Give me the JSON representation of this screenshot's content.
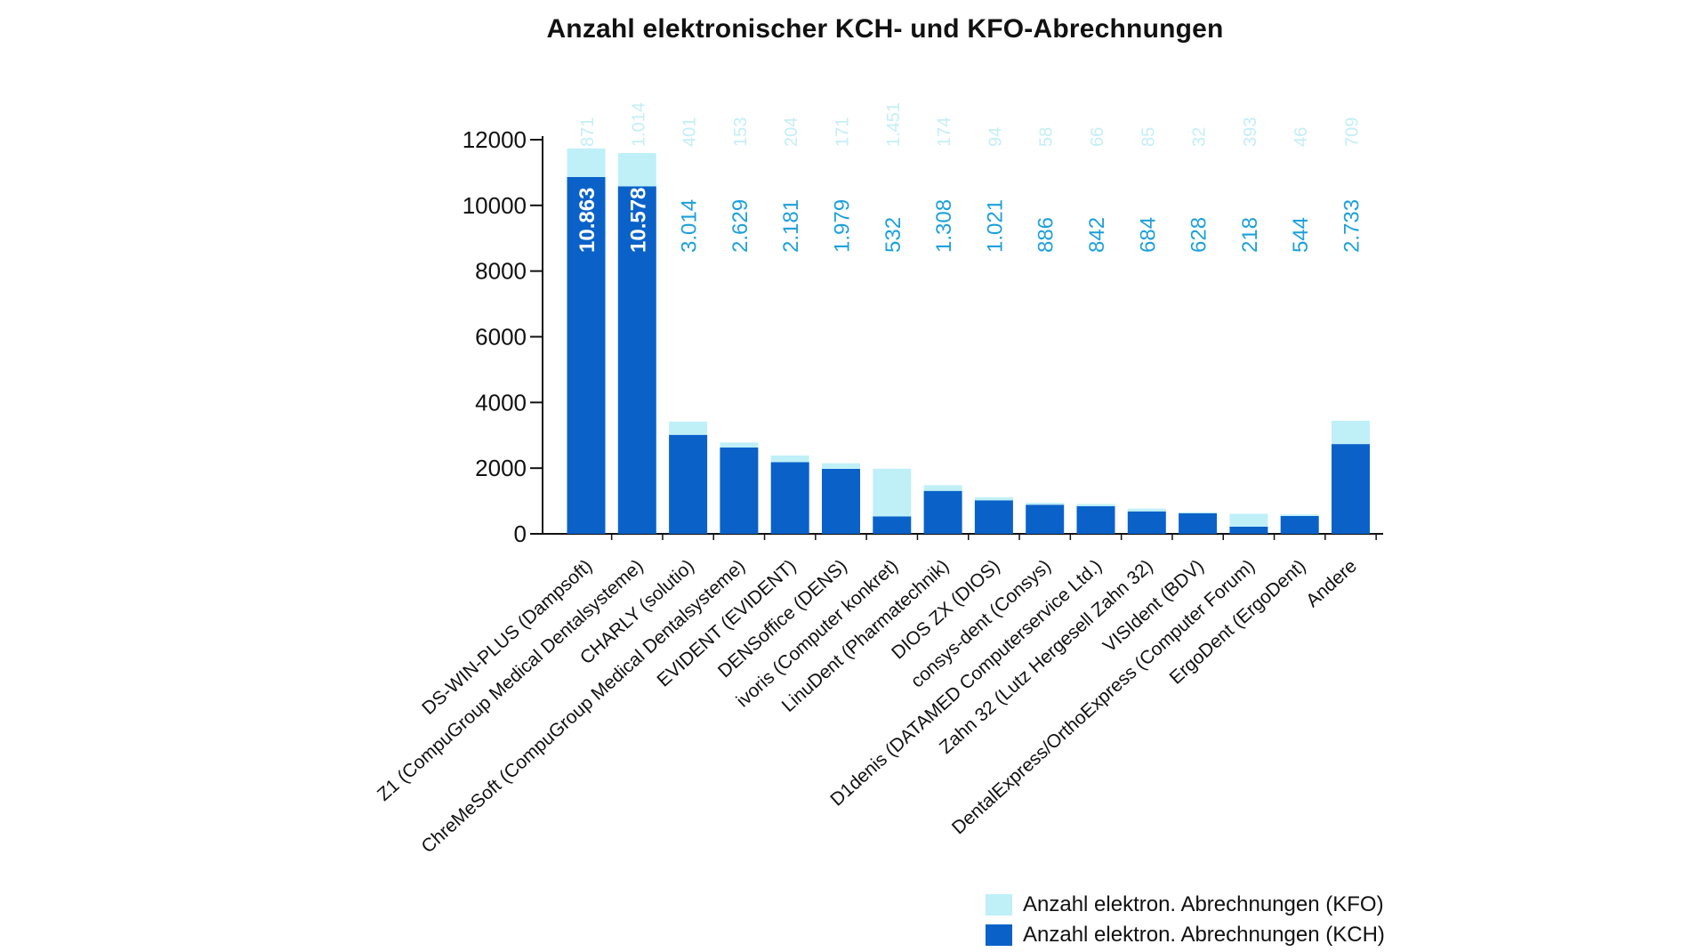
{
  "colors": {
    "kch": "#0a62c9",
    "kfo": "#bff0f8",
    "kch_label_inside": "#ffffff",
    "kch_label_outside": "#1da0dc",
    "kfo_label": "#c4eef6",
    "axis": "#111111"
  },
  "chart_data": {
    "type": "bar",
    "stacked": true,
    "title": "Anzahl elektronischer KCH- und KFO-Abrechnungen",
    "xlabel": "",
    "ylabel": "",
    "ylim": [
      0,
      12000
    ],
    "yticks": [
      "0",
      "2000",
      "4000",
      "6000",
      "8000",
      "10000",
      "12000"
    ],
    "grid": false,
    "legend_position": "bottom-right",
    "categories": [
      "DS-WIN-PLUS (Dampsoft)",
      "Z1 (CompuGroup Medical Dentalsysteme)",
      "CHARLY (solutio)",
      "ChreMeSoft (CompuGroup Medical Dentalsysteme)",
      "EVIDENT (EVIDENT)",
      "DENSoffice (DENS)",
      "ivoris (Computer konkret)",
      "LinuDent (Pharmatechnik)",
      "DIOS ZX (DIOS)",
      "consys-dent (Consys)",
      "D1denis (DATAMED Computerservice Ltd.)",
      "Zahn 32 (Lutz Hergesell Zahn 32)",
      "VISIdent (BDV)",
      "DentalExpress/OrthoExpress (Computer Forum)",
      "ErgoDent (ErgoDent)",
      "Andere"
    ],
    "series": [
      {
        "name": "Anzahl elektron. Abrechnungen (KCH)",
        "values": [
          10863,
          10578,
          3014,
          2629,
          2181,
          1979,
          532,
          1308,
          1021,
          886,
          842,
          684,
          628,
          218,
          544,
          2733
        ],
        "labels": [
          "10.863",
          "10.578",
          "3.014",
          "2.629",
          "2.181",
          "1.979",
          "532",
          "1.308",
          "1.021",
          "886",
          "842",
          "684",
          "628",
          "218",
          "544",
          "2.733"
        ]
      },
      {
        "name": "Anzahl elektron. Abrechnungen (KFO)",
        "values": [
          871,
          1014,
          401,
          153,
          204,
          171,
          1451,
          174,
          94,
          58,
          66,
          85,
          32,
          393,
          46,
          709
        ],
        "labels": [
          "871",
          "1.014",
          "401",
          "153",
          "204",
          "171",
          "1.451",
          "174",
          "94",
          "58",
          "66",
          "85",
          "32",
          "393",
          "46",
          "709"
        ]
      }
    ]
  }
}
